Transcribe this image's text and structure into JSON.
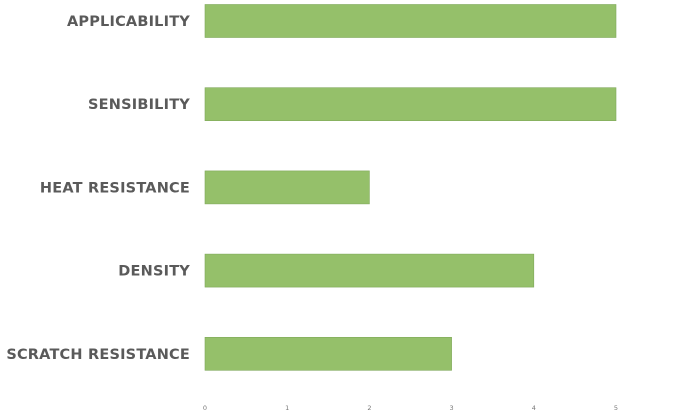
{
  "chart_data": {
    "type": "bar",
    "orientation": "horizontal",
    "categories": [
      "APPLICABILITY",
      "SENSIBILITY",
      "HEAT RESISTANCE",
      "DENSITY",
      "SCRATCH RESISTANCE"
    ],
    "values": [
      5,
      5,
      2,
      4,
      3
    ],
    "xlim": [
      0,
      5
    ],
    "xticks": [
      "0",
      "1",
      "2",
      "3",
      "4",
      "5"
    ],
    "grid": false,
    "legend": "none",
    "bar_color": "#95c06a",
    "bar_edge_color": "#7fa85a",
    "title": "",
    "xlabel": "",
    "ylabel": ""
  }
}
